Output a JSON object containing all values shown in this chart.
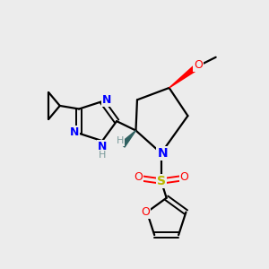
{
  "background_color": "#ececec",
  "bond_color": "#000000",
  "N_color": "#0000ff",
  "O_color": "#ff0000",
  "S_color": "#b8b800",
  "H_color": "#7a9a9a",
  "wedge_color": "#2f6060",
  "figsize": [
    3.0,
    3.0
  ],
  "dpi": 100,
  "xlim": [
    0,
    10
  ],
  "ylim": [
    0,
    10
  ]
}
